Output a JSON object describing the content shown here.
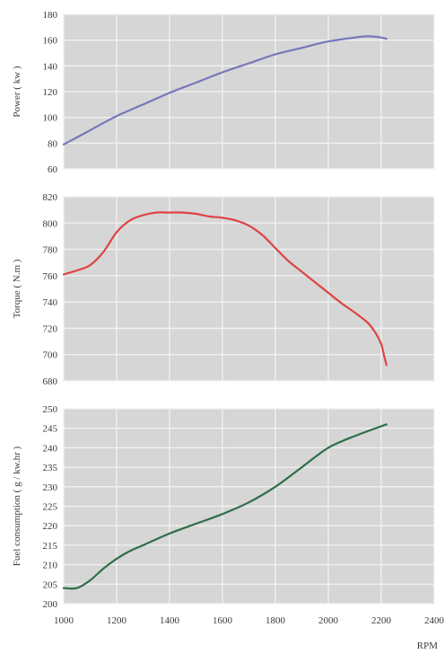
{
  "chart_data": [
    {
      "type": "line",
      "ylabel": "Power ( kw )",
      "xlim": [
        1000,
        2200
      ],
      "ylim": [
        60,
        180
      ],
      "yticks": [
        60,
        80,
        100,
        120,
        140,
        160,
        180
      ],
      "grid": true,
      "series": [
        {
          "color": "#7777bb",
          "x": [
            1000,
            1100,
            1200,
            1300,
            1400,
            1500,
            1600,
            1700,
            1800,
            1900,
            2000,
            2100,
            2150,
            2200,
            2220
          ],
          "y": [
            79,
            90,
            101,
            110,
            119,
            127,
            135,
            142,
            149,
            154,
            159,
            162,
            163,
            162,
            161
          ]
        }
      ]
    },
    {
      "type": "line",
      "ylabel": "Torque ( N.m )",
      "xlim": [
        1000,
        2200
      ],
      "ylim": [
        680,
        820
      ],
      "yticks": [
        680,
        700,
        720,
        740,
        760,
        780,
        800,
        820
      ],
      "grid": true,
      "series": [
        {
          "color": "#dd4444",
          "x": [
            1000,
            1050,
            1100,
            1150,
            1200,
            1250,
            1300,
            1350,
            1400,
            1450,
            1500,
            1550,
            1600,
            1650,
            1700,
            1750,
            1800,
            1850,
            1900,
            1950,
            2000,
            2050,
            2100,
            2150,
            2180,
            2200,
            2210,
            2220
          ],
          "y": [
            761,
            764,
            768,
            778,
            793,
            802,
            806,
            808,
            808,
            808,
            807,
            805,
            804,
            802,
            798,
            791,
            781,
            771,
            763,
            755,
            747,
            739,
            732,
            724,
            716,
            708,
            700,
            692
          ]
        }
      ]
    },
    {
      "type": "line",
      "ylabel": "Fuel consumption ( g / kw.hr )",
      "xlabel": "RPM",
      "xlim": [
        1000,
        2400
      ],
      "xticks": [
        1000,
        1200,
        1400,
        1600,
        1800,
        2000,
        2200,
        2400
      ],
      "ylim": [
        200,
        250
      ],
      "yticks": [
        200,
        205,
        210,
        215,
        220,
        225,
        230,
        235,
        240,
        245,
        250
      ],
      "grid": true,
      "series": [
        {
          "color": "#2e6e48",
          "x": [
            1000,
            1050,
            1100,
            1150,
            1200,
            1250,
            1300,
            1400,
            1500,
            1600,
            1700,
            1800,
            1900,
            2000,
            2100,
            2200,
            2220
          ],
          "y": [
            204,
            204,
            206,
            209,
            211.5,
            213.5,
            215,
            218,
            220.5,
            223,
            226,
            230,
            235,
            240,
            243,
            245.5,
            246
          ]
        }
      ]
    }
  ]
}
